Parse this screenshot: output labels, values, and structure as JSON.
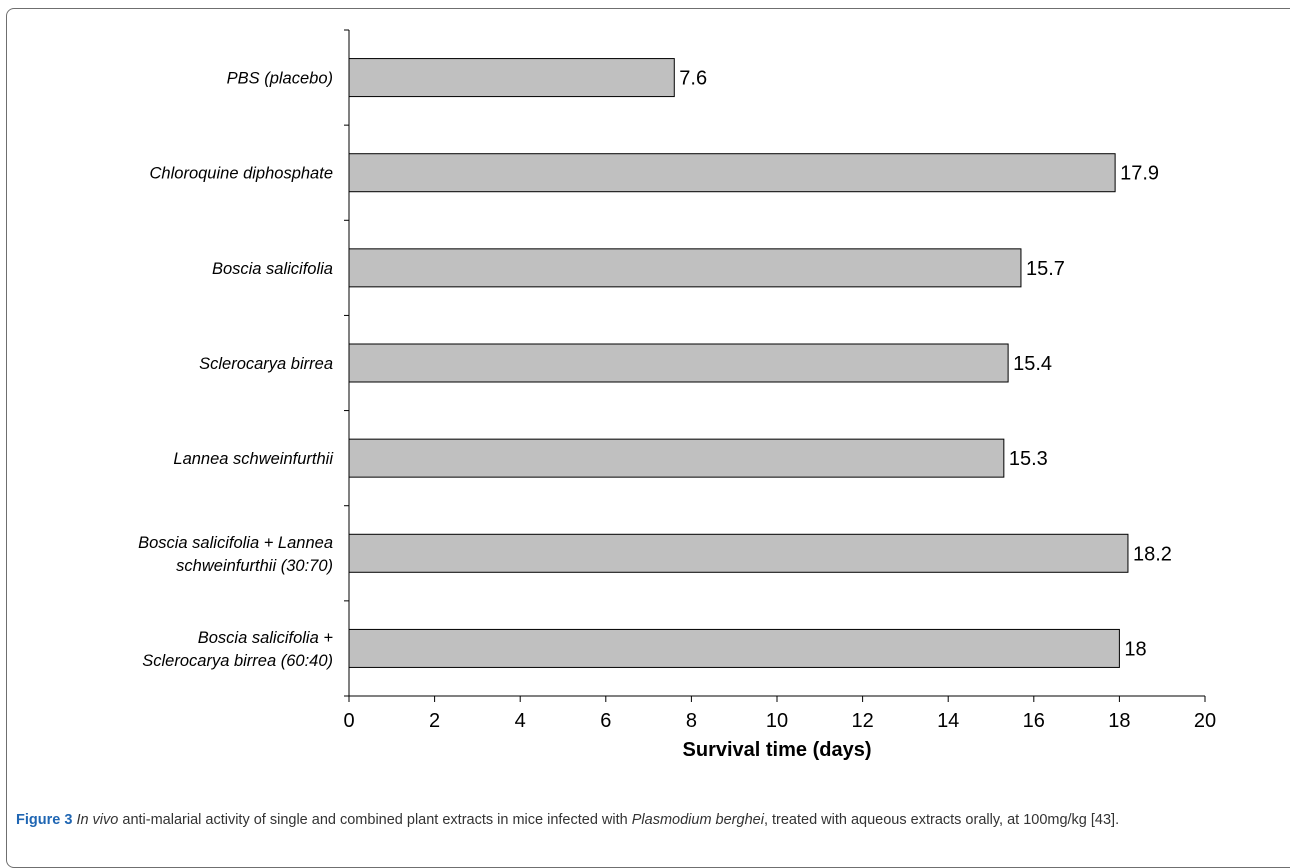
{
  "chart_data": {
    "type": "bar",
    "orientation": "horizontal",
    "categories": [
      [
        "PBS (placebo)"
      ],
      [
        "Chloroquine diphosphate"
      ],
      [
        "Boscia salicifolia"
      ],
      [
        "Sclerocarya birrea"
      ],
      [
        "Lannea schweinfurthii"
      ],
      [
        "Boscia salicifolia + Lannea",
        "schweinfurthii (30:70)"
      ],
      [
        "Boscia salicifolia +",
        "Sclerocarya birrea (60:40)"
      ]
    ],
    "values": [
      7.6,
      17.9,
      15.7,
      15.4,
      15.3,
      18.2,
      18
    ],
    "value_labels": [
      "7.6",
      "17.9",
      "15.7",
      "15.4",
      "15.3",
      "18.2",
      "18"
    ],
    "xlabel": "Survival time (days)",
    "ylabel": "",
    "xlim": [
      0,
      20
    ],
    "xticks": [
      0,
      2,
      4,
      6,
      8,
      10,
      12,
      14,
      16,
      18,
      20
    ],
    "grid": false,
    "bar_color": "#c0c0c0",
    "bar_edge_color": "#000000"
  },
  "caption": {
    "label": "Figure 3",
    "text_italic_1": "In vivo",
    "text_1": " anti-malarial activity of single and combined plant extracts in mice infected with ",
    "text_italic_2": "Plasmodium berghei",
    "text_2": ", treated with aqueous extracts orally, at 100mg/kg [43]."
  }
}
